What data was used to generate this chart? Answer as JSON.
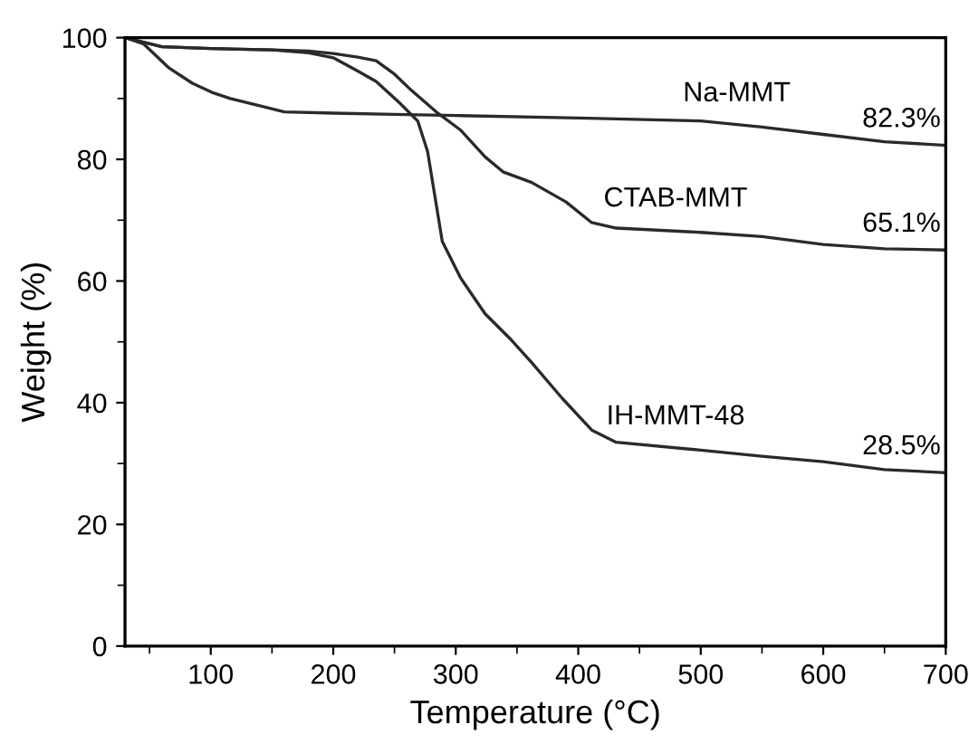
{
  "chart_data": {
    "type": "line",
    "xlabel": "Temperature (°C)",
    "ylabel": "Weight (%)",
    "xlim": [
      30,
      700
    ],
    "ylim": [
      0,
      100
    ],
    "xticks": [
      100,
      200,
      300,
      400,
      500,
      600,
      700
    ],
    "yticks": [
      0,
      20,
      40,
      60,
      80,
      100
    ],
    "grid": false,
    "legend": false,
    "marker": "none",
    "line_style": "solid",
    "series": [
      {
        "name": "Na-MMT",
        "color": "#2a2a2a",
        "x": [
          30,
          45,
          66,
          85,
          101,
          116,
          140,
          160,
          200,
          250,
          300,
          400,
          500,
          550,
          600,
          650,
          700
        ],
        "values": [
          100,
          99,
          95,
          92.5,
          91,
          90,
          88.8,
          87.8,
          87.6,
          87.4,
          87.2,
          86.8,
          86.3,
          85.3,
          84.1,
          82.9,
          82.3
        ]
      },
      {
        "name": "CTAB-MMT",
        "color": "#2a2a2a",
        "x": [
          30,
          60,
          100,
          150,
          180,
          200,
          220,
          235,
          250,
          264,
          284,
          304,
          324,
          339,
          362,
          390,
          411,
          431,
          500,
          550,
          600,
          650,
          700
        ],
        "values": [
          100,
          98.5,
          98.2,
          98,
          97.8,
          97.4,
          96.8,
          96.2,
          94,
          91.3,
          87.8,
          84.8,
          80.4,
          77.9,
          76.2,
          73,
          69.6,
          68.7,
          68,
          67.3,
          66,
          65.3,
          65.1
        ]
      },
      {
        "name": "IH-MMT-48",
        "color": "#2a2a2a",
        "x": [
          30,
          60,
          100,
          150,
          180,
          200,
          220,
          235,
          254,
          269,
          277,
          289,
          304,
          324,
          344,
          362,
          387,
          411,
          431,
          500,
          550,
          600,
          650,
          700
        ],
        "values": [
          100,
          98.5,
          98.2,
          98,
          97.5,
          96.7,
          94.5,
          92.8,
          89.3,
          86.3,
          81.3,
          66.5,
          60.5,
          54.6,
          50.6,
          46.6,
          40.7,
          35.5,
          33.5,
          32.2,
          31.2,
          30.3,
          29,
          28.5
        ]
      }
    ],
    "annotations": [
      "82.3%",
      "65.1%",
      "28.5%"
    ]
  }
}
